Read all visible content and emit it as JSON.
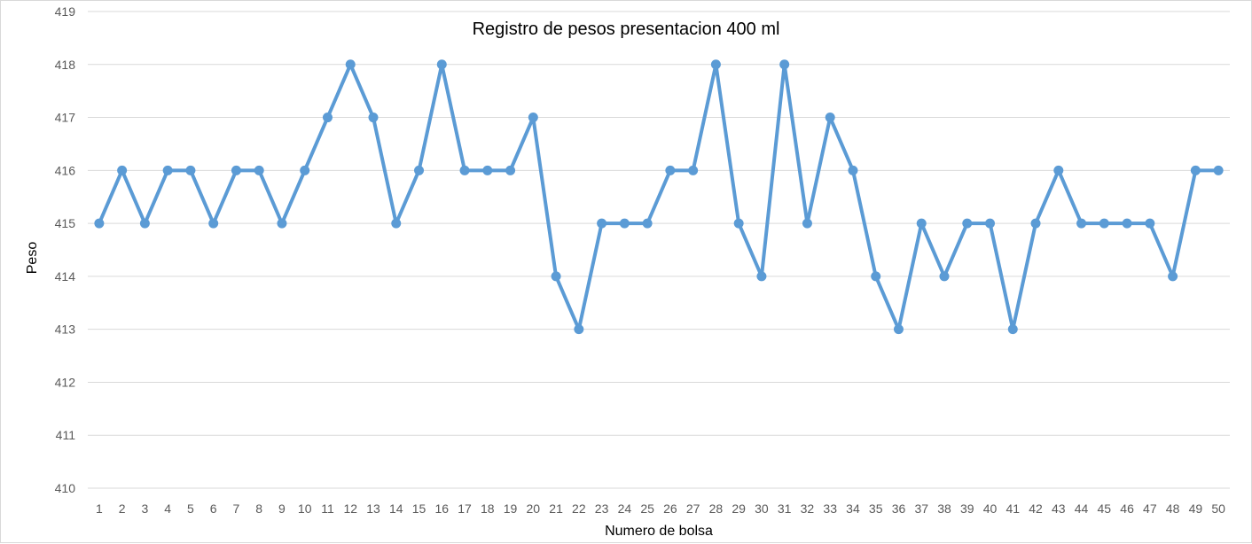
{
  "chart_data": {
    "type": "line",
    "title": "Registro de pesos presentacion 400 ml",
    "xlabel": "Numero de bolsa",
    "ylabel": "Peso",
    "x": [
      1,
      2,
      3,
      4,
      5,
      6,
      7,
      8,
      9,
      10,
      11,
      12,
      13,
      14,
      15,
      16,
      17,
      18,
      19,
      20,
      21,
      22,
      23,
      24,
      25,
      26,
      27,
      28,
      29,
      30,
      31,
      32,
      33,
      34,
      35,
      36,
      37,
      38,
      39,
      40,
      41,
      42,
      43,
      44,
      45,
      46,
      47,
      48,
      49,
      50
    ],
    "series": [
      {
        "values": [
          415,
          416,
          415,
          416,
          416,
          415,
          416,
          416,
          415,
          416,
          417,
          418,
          417,
          415,
          416,
          418,
          416,
          416,
          416,
          417,
          414,
          413,
          415,
          415,
          415,
          416,
          416,
          418,
          415,
          414,
          418,
          415,
          417,
          416,
          414,
          413,
          415,
          414,
          415,
          415,
          413,
          415,
          416,
          415,
          415,
          415,
          415,
          414,
          416,
          416
        ],
        "color": "#5b9bd5"
      }
    ],
    "ylim": [
      410,
      419
    ],
    "yticks": [
      410,
      411,
      412,
      413,
      414,
      415,
      416,
      417,
      418,
      419
    ],
    "grid": true,
    "legend": "none",
    "gridline_color": "#d9d9d9"
  }
}
